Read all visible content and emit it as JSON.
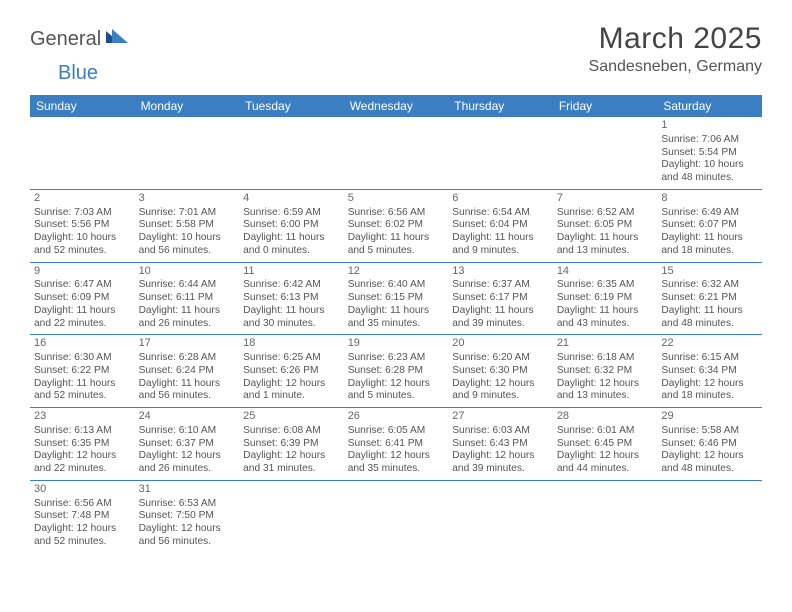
{
  "logo": {
    "part1": "General",
    "part2": "Blue"
  },
  "title": "March 2025",
  "location": "Sandesneben, Germany",
  "colors": {
    "header_bg": "#3b7ec1",
    "header_fg": "#ffffff",
    "border": "#3b7ec1",
    "text": "#555555",
    "title_color": "#444444"
  },
  "day_headers": [
    "Sunday",
    "Monday",
    "Tuesday",
    "Wednesday",
    "Thursday",
    "Friday",
    "Saturday"
  ],
  "weeks": [
    [
      null,
      null,
      null,
      null,
      null,
      null,
      {
        "n": "1",
        "sr": "Sunrise: 7:06 AM",
        "ss": "Sunset: 5:54 PM",
        "dl1": "Daylight: 10 hours",
        "dl2": "and 48 minutes."
      }
    ],
    [
      {
        "n": "2",
        "sr": "Sunrise: 7:03 AM",
        "ss": "Sunset: 5:56 PM",
        "dl1": "Daylight: 10 hours",
        "dl2": "and 52 minutes."
      },
      {
        "n": "3",
        "sr": "Sunrise: 7:01 AM",
        "ss": "Sunset: 5:58 PM",
        "dl1": "Daylight: 10 hours",
        "dl2": "and 56 minutes."
      },
      {
        "n": "4",
        "sr": "Sunrise: 6:59 AM",
        "ss": "Sunset: 6:00 PM",
        "dl1": "Daylight: 11 hours",
        "dl2": "and 0 minutes."
      },
      {
        "n": "5",
        "sr": "Sunrise: 6:56 AM",
        "ss": "Sunset: 6:02 PM",
        "dl1": "Daylight: 11 hours",
        "dl2": "and 5 minutes."
      },
      {
        "n": "6",
        "sr": "Sunrise: 6:54 AM",
        "ss": "Sunset: 6:04 PM",
        "dl1": "Daylight: 11 hours",
        "dl2": "and 9 minutes."
      },
      {
        "n": "7",
        "sr": "Sunrise: 6:52 AM",
        "ss": "Sunset: 6:05 PM",
        "dl1": "Daylight: 11 hours",
        "dl2": "and 13 minutes."
      },
      {
        "n": "8",
        "sr": "Sunrise: 6:49 AM",
        "ss": "Sunset: 6:07 PM",
        "dl1": "Daylight: 11 hours",
        "dl2": "and 18 minutes."
      }
    ],
    [
      {
        "n": "9",
        "sr": "Sunrise: 6:47 AM",
        "ss": "Sunset: 6:09 PM",
        "dl1": "Daylight: 11 hours",
        "dl2": "and 22 minutes."
      },
      {
        "n": "10",
        "sr": "Sunrise: 6:44 AM",
        "ss": "Sunset: 6:11 PM",
        "dl1": "Daylight: 11 hours",
        "dl2": "and 26 minutes."
      },
      {
        "n": "11",
        "sr": "Sunrise: 6:42 AM",
        "ss": "Sunset: 6:13 PM",
        "dl1": "Daylight: 11 hours",
        "dl2": "and 30 minutes."
      },
      {
        "n": "12",
        "sr": "Sunrise: 6:40 AM",
        "ss": "Sunset: 6:15 PM",
        "dl1": "Daylight: 11 hours",
        "dl2": "and 35 minutes."
      },
      {
        "n": "13",
        "sr": "Sunrise: 6:37 AM",
        "ss": "Sunset: 6:17 PM",
        "dl1": "Daylight: 11 hours",
        "dl2": "and 39 minutes."
      },
      {
        "n": "14",
        "sr": "Sunrise: 6:35 AM",
        "ss": "Sunset: 6:19 PM",
        "dl1": "Daylight: 11 hours",
        "dl2": "and 43 minutes."
      },
      {
        "n": "15",
        "sr": "Sunrise: 6:32 AM",
        "ss": "Sunset: 6:21 PM",
        "dl1": "Daylight: 11 hours",
        "dl2": "and 48 minutes."
      }
    ],
    [
      {
        "n": "16",
        "sr": "Sunrise: 6:30 AM",
        "ss": "Sunset: 6:22 PM",
        "dl1": "Daylight: 11 hours",
        "dl2": "and 52 minutes."
      },
      {
        "n": "17",
        "sr": "Sunrise: 6:28 AM",
        "ss": "Sunset: 6:24 PM",
        "dl1": "Daylight: 11 hours",
        "dl2": "and 56 minutes."
      },
      {
        "n": "18",
        "sr": "Sunrise: 6:25 AM",
        "ss": "Sunset: 6:26 PM",
        "dl1": "Daylight: 12 hours",
        "dl2": "and 1 minute."
      },
      {
        "n": "19",
        "sr": "Sunrise: 6:23 AM",
        "ss": "Sunset: 6:28 PM",
        "dl1": "Daylight: 12 hours",
        "dl2": "and 5 minutes."
      },
      {
        "n": "20",
        "sr": "Sunrise: 6:20 AM",
        "ss": "Sunset: 6:30 PM",
        "dl1": "Daylight: 12 hours",
        "dl2": "and 9 minutes."
      },
      {
        "n": "21",
        "sr": "Sunrise: 6:18 AM",
        "ss": "Sunset: 6:32 PM",
        "dl1": "Daylight: 12 hours",
        "dl2": "and 13 minutes."
      },
      {
        "n": "22",
        "sr": "Sunrise: 6:15 AM",
        "ss": "Sunset: 6:34 PM",
        "dl1": "Daylight: 12 hours",
        "dl2": "and 18 minutes."
      }
    ],
    [
      {
        "n": "23",
        "sr": "Sunrise: 6:13 AM",
        "ss": "Sunset: 6:35 PM",
        "dl1": "Daylight: 12 hours",
        "dl2": "and 22 minutes."
      },
      {
        "n": "24",
        "sr": "Sunrise: 6:10 AM",
        "ss": "Sunset: 6:37 PM",
        "dl1": "Daylight: 12 hours",
        "dl2": "and 26 minutes."
      },
      {
        "n": "25",
        "sr": "Sunrise: 6:08 AM",
        "ss": "Sunset: 6:39 PM",
        "dl1": "Daylight: 12 hours",
        "dl2": "and 31 minutes."
      },
      {
        "n": "26",
        "sr": "Sunrise: 6:05 AM",
        "ss": "Sunset: 6:41 PM",
        "dl1": "Daylight: 12 hours",
        "dl2": "and 35 minutes."
      },
      {
        "n": "27",
        "sr": "Sunrise: 6:03 AM",
        "ss": "Sunset: 6:43 PM",
        "dl1": "Daylight: 12 hours",
        "dl2": "and 39 minutes."
      },
      {
        "n": "28",
        "sr": "Sunrise: 6:01 AM",
        "ss": "Sunset: 6:45 PM",
        "dl1": "Daylight: 12 hours",
        "dl2": "and 44 minutes."
      },
      {
        "n": "29",
        "sr": "Sunrise: 5:58 AM",
        "ss": "Sunset: 6:46 PM",
        "dl1": "Daylight: 12 hours",
        "dl2": "and 48 minutes."
      }
    ],
    [
      {
        "n": "30",
        "sr": "Sunrise: 6:56 AM",
        "ss": "Sunset: 7:48 PM",
        "dl1": "Daylight: 12 hours",
        "dl2": "and 52 minutes."
      },
      {
        "n": "31",
        "sr": "Sunrise: 6:53 AM",
        "ss": "Sunset: 7:50 PM",
        "dl1": "Daylight: 12 hours",
        "dl2": "and 56 minutes."
      },
      null,
      null,
      null,
      null,
      null
    ]
  ]
}
